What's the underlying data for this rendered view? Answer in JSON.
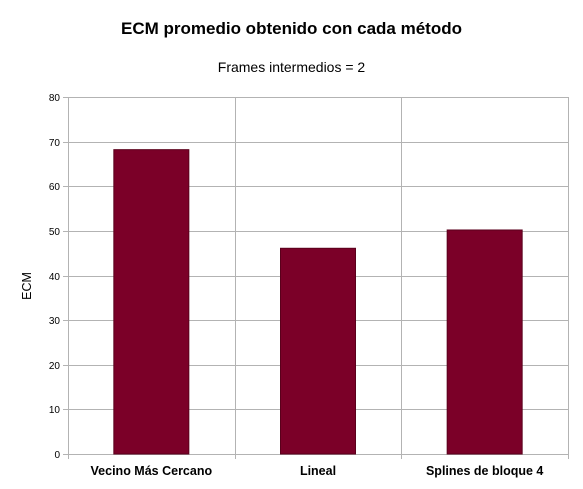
{
  "chart_data": {
    "type": "bar",
    "title": "ECM promedio obtenido con cada método",
    "subtitle": "Frames intermedios = 2",
    "xlabel": "",
    "ylabel": "ECM",
    "categories": [
      "Vecino Más Cercano",
      "Lineal",
      "Splines de bloque 4"
    ],
    "values": [
      68.2,
      46.1,
      50.2
    ],
    "ylim": [
      0,
      80
    ],
    "yticks": [
      0,
      10,
      20,
      30,
      40,
      50,
      60,
      70,
      80
    ],
    "grid": true,
    "legend": "none",
    "colors": {
      "bar": "#7b0028",
      "bar_stroke": "#5a001c",
      "grid": "#b3b3b3",
      "axis": "#b3b3b3"
    }
  }
}
